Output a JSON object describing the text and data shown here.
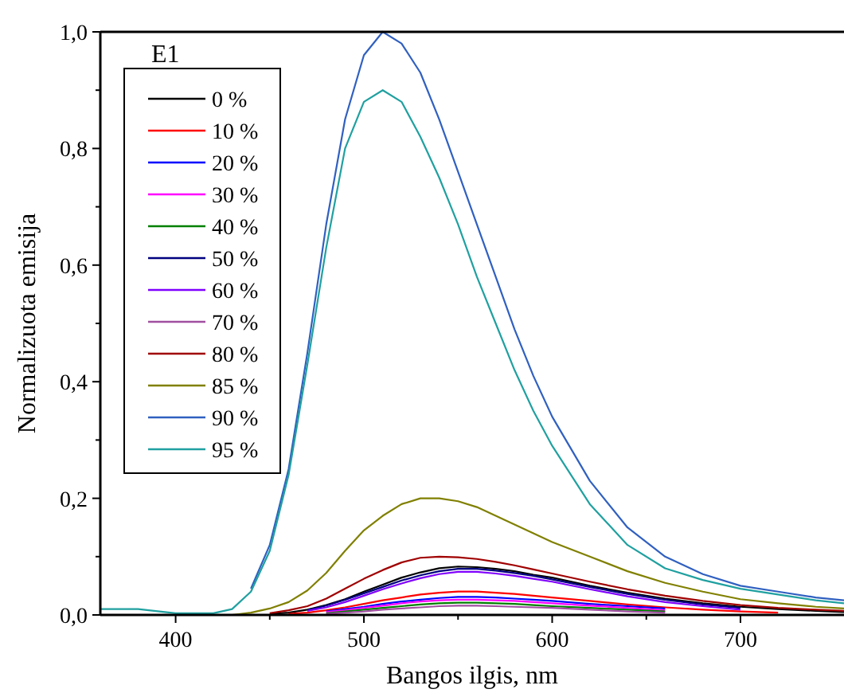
{
  "chart_data": {
    "type": "line",
    "xlabel": "Bangos ilgis, nm",
    "ylabel": "Normalizuota emisija",
    "legend_title": "E1",
    "legend": "top left",
    "grid": false,
    "marker": "none",
    "line_style": "solid",
    "x": [
      360,
      380,
      400,
      420,
      430,
      440,
      450,
      460,
      470,
      480,
      490,
      500,
      510,
      520,
      530,
      540,
      550,
      560,
      570,
      580,
      590,
      600,
      620,
      640,
      660,
      680,
      700,
      720,
      740,
      755
    ],
    "xlim": [
      360,
      755
    ],
    "ylim": [
      0,
      1
    ],
    "xticks": [
      400,
      {
        "value": 450,
        "label": null
      },
      500,
      {
        "value": 550,
        "label": null
      },
      600,
      {
        "value": 650,
        "label": null
      },
      700
    ],
    "yticks": [
      {
        "value": 0,
        "label": "0,0"
      },
      {
        "value": 0.1,
        "label": null
      },
      {
        "value": 0.2,
        "label": "0,2"
      },
      {
        "value": 0.3,
        "label": null
      },
      {
        "value": 0.4,
        "label": "0,4"
      },
      {
        "value": 0.5,
        "label": null
      },
      {
        "value": 0.6,
        "label": "0,6"
      },
      {
        "value": 0.7,
        "label": null
      },
      {
        "value": 0.8,
        "label": "0,8"
      },
      {
        "value": 0.9,
        "label": null
      },
      {
        "value": 1,
        "label": "1,0"
      }
    ],
    "series": [
      {
        "name": "0 %",
        "color": "#000000",
        "values": [
          null,
          null,
          null,
          null,
          null,
          null,
          0.002,
          0.004,
          0.009,
          0.017,
          0.027,
          0.04,
          0.052,
          0.064,
          0.073,
          0.08,
          0.083,
          0.082,
          0.079,
          0.075,
          0.069,
          0.064,
          0.05,
          0.038,
          0.028,
          0.02,
          0.014,
          0.01,
          0.007,
          0.005
        ]
      },
      {
        "name": "10 %",
        "color": "#ff0000",
        "values": [
          null,
          null,
          null,
          null,
          null,
          null,
          null,
          0.002,
          0.004,
          0.008,
          0.013,
          0.019,
          0.025,
          0.03,
          0.035,
          0.038,
          0.04,
          0.04,
          0.038,
          0.036,
          0.033,
          0.03,
          0.024,
          0.018,
          0.013,
          0.009,
          0.006,
          0.004,
          null,
          null
        ]
      },
      {
        "name": "20 %",
        "color": "#0000ff",
        "values": [
          null,
          null,
          null,
          null,
          null,
          null,
          null,
          null,
          null,
          0.006,
          0.01,
          0.014,
          0.019,
          0.023,
          0.026,
          0.029,
          0.031,
          0.031,
          0.03,
          0.028,
          0.026,
          0.024,
          0.019,
          0.015,
          0.011,
          null,
          null,
          null,
          null,
          null
        ]
      },
      {
        "name": "30 %",
        "color": "#ff00ff",
        "values": [
          null,
          null,
          null,
          null,
          null,
          null,
          null,
          null,
          null,
          0.005,
          0.008,
          0.012,
          0.016,
          0.02,
          0.023,
          0.025,
          0.026,
          0.026,
          0.025,
          0.024,
          0.022,
          0.02,
          0.016,
          0.012,
          0.008,
          null,
          null,
          null,
          null,
          null
        ]
      },
      {
        "name": "40 %",
        "color": "#008000",
        "values": [
          null,
          null,
          null,
          null,
          null,
          null,
          null,
          null,
          null,
          0.003,
          0.006,
          0.009,
          0.012,
          0.015,
          0.018,
          0.02,
          0.021,
          0.021,
          0.02,
          0.019,
          0.017,
          0.015,
          0.012,
          0.009,
          0.006,
          null,
          null,
          null,
          null,
          null
        ]
      },
      {
        "name": "50 %",
        "color": "#000080",
        "values": [
          null,
          null,
          null,
          null,
          null,
          null,
          null,
          null,
          0.008,
          0.016,
          0.026,
          0.037,
          0.048,
          0.059,
          0.068,
          0.075,
          0.079,
          0.079,
          0.076,
          0.072,
          0.067,
          0.061,
          0.048,
          0.036,
          0.026,
          0.018,
          0.012,
          null,
          null,
          null
        ]
      },
      {
        "name": "60 %",
        "color": "#8000ff",
        "values": [
          null,
          null,
          null,
          null,
          null,
          null,
          null,
          null,
          0.007,
          0.013,
          0.022,
          0.033,
          0.044,
          0.054,
          0.063,
          0.07,
          0.074,
          0.074,
          0.071,
          0.067,
          0.062,
          0.057,
          0.044,
          0.032,
          0.022,
          0.015,
          0.009,
          null,
          null,
          null
        ]
      },
      {
        "name": "70 %",
        "color": "#a050a0",
        "values": [
          null,
          null,
          null,
          null,
          null,
          null,
          null,
          null,
          null,
          0.002,
          0.004,
          0.006,
          0.009,
          0.011,
          0.013,
          0.015,
          0.016,
          0.016,
          0.015,
          0.014,
          0.013,
          0.012,
          0.009,
          0.006,
          0.004,
          null,
          null,
          null,
          null,
          null
        ]
      },
      {
        "name": "80 %",
        "color": "#a00000",
        "values": [
          null,
          null,
          null,
          null,
          null,
          null,
          0.003,
          0.008,
          0.015,
          0.028,
          0.045,
          0.062,
          0.077,
          0.09,
          0.098,
          0.1,
          0.099,
          0.096,
          0.091,
          0.085,
          0.078,
          0.071,
          0.057,
          0.044,
          0.033,
          0.024,
          0.017,
          0.012,
          0.009,
          0.007
        ]
      },
      {
        "name": "85 %",
        "color": "#808000",
        "values": [
          null,
          null,
          null,
          null,
          0,
          0.004,
          0.011,
          0.022,
          0.042,
          0.072,
          0.11,
          0.145,
          0.17,
          0.19,
          0.2,
          0.2,
          0.195,
          0.185,
          0.17,
          0.155,
          0.14,
          0.125,
          0.1,
          0.075,
          0.055,
          0.04,
          0.027,
          0.02,
          0.014,
          0.011
        ]
      },
      {
        "name": "90 %",
        "color": "#3060c0",
        "values": [
          null,
          null,
          null,
          null,
          null,
          0.045,
          0.12,
          0.25,
          0.45,
          0.67,
          0.85,
          0.96,
          1.0,
          0.98,
          0.93,
          0.85,
          0.76,
          0.67,
          0.58,
          0.49,
          0.41,
          0.34,
          0.23,
          0.15,
          0.1,
          0.07,
          0.05,
          0.04,
          0.03,
          0.025
        ]
      },
      {
        "name": "95 %",
        "color": "#20a0a0",
        "values": [
          0.01,
          0.01,
          0.003,
          0.003,
          0.01,
          0.04,
          0.11,
          0.24,
          0.43,
          0.63,
          0.8,
          0.88,
          0.9,
          0.88,
          0.82,
          0.75,
          0.67,
          0.58,
          0.5,
          0.42,
          0.35,
          0.29,
          0.19,
          0.12,
          0.08,
          0.06,
          0.045,
          0.035,
          0.025,
          0.02
        ]
      }
    ]
  }
}
